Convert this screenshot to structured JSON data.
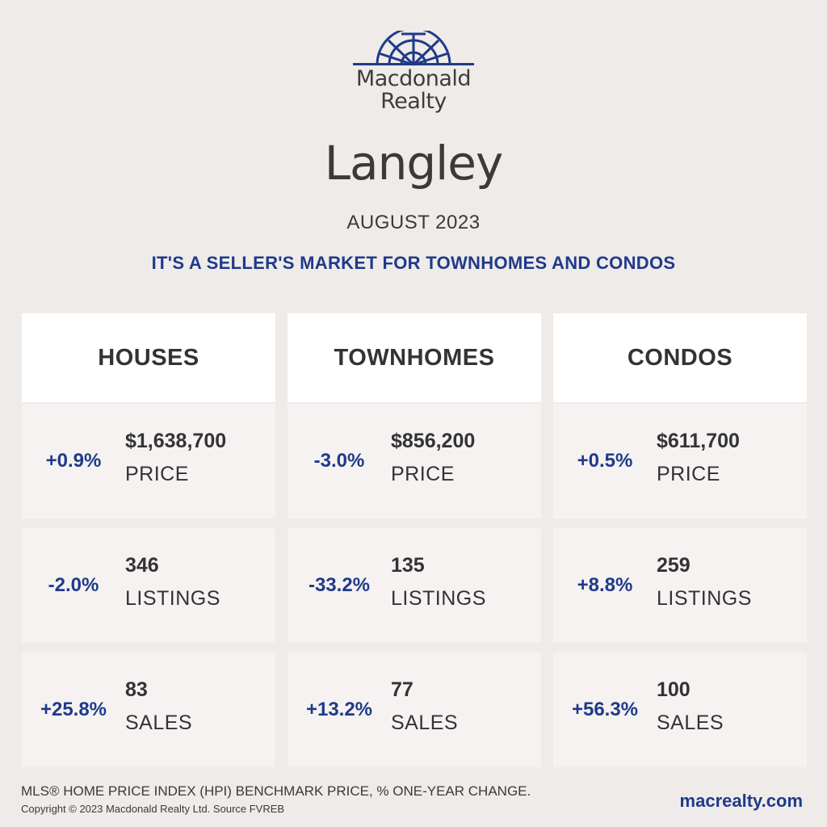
{
  "brand": {
    "line1": "Macdonald",
    "line2": "Realty"
  },
  "colors": {
    "accent": "#1f3a8a",
    "background": "#efebe9",
    "card": "#f5f2f1",
    "header_card": "#ffffff"
  },
  "city": "Langley",
  "month": "AUGUST 2023",
  "headline": "IT'S A SELLER'S MARKET FOR TOWNHOMES AND CONDOS",
  "columns": [
    {
      "title": "HOUSES",
      "stats": [
        {
          "change": "+0.9%",
          "value": "$1,638,700",
          "label": "PRICE"
        },
        {
          "change": "-2.0%",
          "value": "346",
          "label": "LISTINGS"
        },
        {
          "change": "+25.8%",
          "value": "83",
          "label": "SALES"
        }
      ]
    },
    {
      "title": "TOWNHOMES",
      "stats": [
        {
          "change": "-3.0%",
          "value": "$856,200",
          "label": "PRICE"
        },
        {
          "change": "-33.2%",
          "value": "135",
          "label": "LISTINGS"
        },
        {
          "change": "+13.2%",
          "value": "77",
          "label": "SALES"
        }
      ]
    },
    {
      "title": "CONDOS",
      "stats": [
        {
          "change": "+0.5%",
          "value": "$611,700",
          "label": "PRICE"
        },
        {
          "change": "+8.8%",
          "value": "259",
          "label": "LISTINGS"
        },
        {
          "change": "+56.3%",
          "value": "100",
          "label": "SALES"
        }
      ]
    }
  ],
  "footer": {
    "note": "MLS® HOME PRICE INDEX (HPI) BENCHMARK PRICE, % ONE-YEAR CHANGE.",
    "copyright": "Copyright © 2023 Macdonald Realty Ltd. Source FVREB",
    "website": "macrealty.com"
  }
}
